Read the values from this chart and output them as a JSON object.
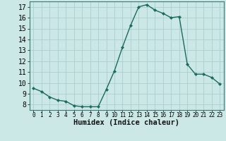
{
  "title": "",
  "xlabel": "Humidex (Indice chaleur)",
  "x": [
    0,
    1,
    2,
    3,
    4,
    5,
    6,
    7,
    8,
    9,
    10,
    11,
    12,
    13,
    14,
    15,
    16,
    17,
    18,
    19,
    20,
    21,
    22,
    23
  ],
  "y": [
    9.5,
    9.2,
    8.7,
    8.4,
    8.3,
    7.9,
    7.8,
    7.8,
    7.8,
    9.4,
    11.1,
    13.3,
    15.3,
    17.0,
    17.2,
    16.7,
    16.4,
    16.0,
    16.1,
    11.7,
    10.8,
    10.8,
    10.5,
    9.9
  ],
  "line_color": "#1a6b5a",
  "marker": "D",
  "marker_size": 2.2,
  "bg_color": "#cce8e6",
  "grid_color": "#aacfcd",
  "xlim": [
    -0.5,
    23.5
  ],
  "ylim": [
    7.5,
    17.5
  ],
  "yticks": [
    8,
    9,
    10,
    11,
    12,
    13,
    14,
    15,
    16,
    17
  ],
  "xticks": [
    0,
    1,
    2,
    3,
    4,
    5,
    6,
    7,
    8,
    9,
    10,
    11,
    12,
    13,
    14,
    15,
    16,
    17,
    18,
    19,
    20,
    21,
    22,
    23
  ],
  "xlabel_fontsize": 7.5,
  "tick_fontsize": 7,
  "xtick_fontsize": 5.5
}
